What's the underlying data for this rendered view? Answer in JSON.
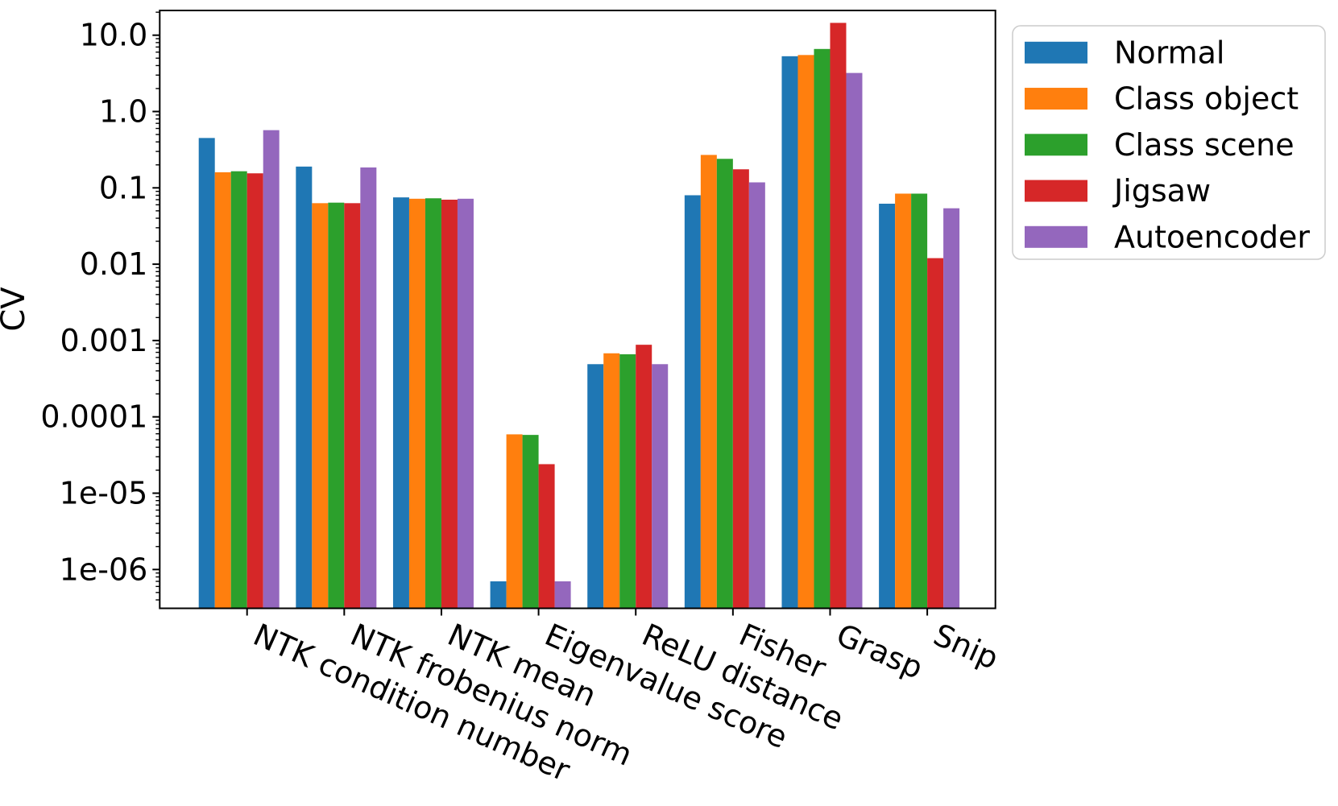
{
  "chart_data": {
    "type": "bar",
    "title": "",
    "xlabel": "",
    "ylabel": "CV",
    "yscale": "log",
    "ylim": [
      3.1e-07,
      21
    ],
    "grid": false,
    "legend_position": "upper right, outside axes",
    "categories": [
      "NTK condition number",
      "NTK frobenius norm",
      "NTK mean",
      "Eigenvalue score",
      "ReLU distance",
      "Fisher",
      "Grasp",
      "Snip"
    ],
    "series": [
      {
        "name": "Normal",
        "color": "#1f77b4",
        "values": [
          0.45,
          0.19,
          0.075,
          7e-07,
          0.00049,
          0.08,
          5.3,
          0.062
        ]
      },
      {
        "name": "Class object",
        "color": "#ff7f0e",
        "values": [
          0.16,
          0.063,
          0.072,
          5.9e-05,
          0.00068,
          0.27,
          5.5,
          0.084
        ]
      },
      {
        "name": "Class scene",
        "color": "#2ca02c",
        "values": [
          0.165,
          0.064,
          0.073,
          5.8e-05,
          0.00066,
          0.24,
          6.6,
          0.084
        ]
      },
      {
        "name": "Jigsaw",
        "color": "#d62728",
        "values": [
          0.155,
          0.063,
          0.07,
          2.4e-05,
          0.00088,
          0.175,
          14.5,
          0.012
        ]
      },
      {
        "name": "Autoencoder",
        "color": "#9467bd",
        "values": [
          0.57,
          0.185,
          0.072,
          7e-07,
          0.00049,
          0.118,
          3.2,
          0.054
        ]
      }
    ],
    "y_ticks": [
      {
        "value": 10,
        "label": "10.0"
      },
      {
        "value": 1,
        "label": "1.0"
      },
      {
        "value": 0.1,
        "label": "0.1"
      },
      {
        "value": 0.01,
        "label": "0.01"
      },
      {
        "value": 0.001,
        "label": "0.001"
      },
      {
        "value": 0.0001,
        "label": "0.0001"
      },
      {
        "value": 1e-05,
        "label": "1e-05"
      },
      {
        "value": 1e-06,
        "label": "1e-06"
      }
    ]
  }
}
